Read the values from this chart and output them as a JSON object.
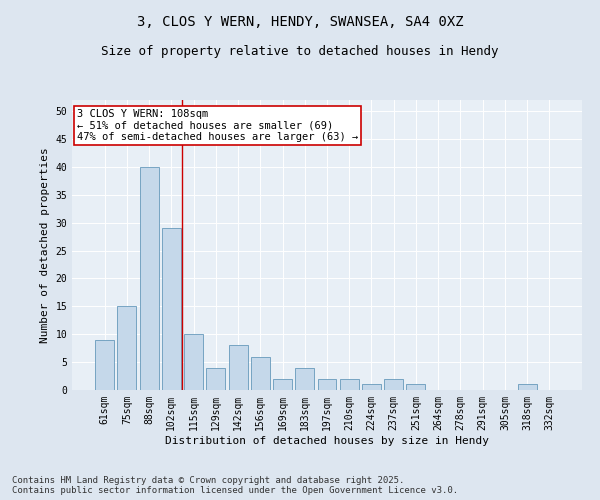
{
  "title": "3, CLOS Y WERN, HENDY, SWANSEA, SA4 0XZ",
  "subtitle": "Size of property relative to detached houses in Hendy",
  "xlabel": "Distribution of detached houses by size in Hendy",
  "ylabel": "Number of detached properties",
  "categories": [
    "61sqm",
    "75sqm",
    "88sqm",
    "102sqm",
    "115sqm",
    "129sqm",
    "142sqm",
    "156sqm",
    "169sqm",
    "183sqm",
    "197sqm",
    "210sqm",
    "224sqm",
    "237sqm",
    "251sqm",
    "264sqm",
    "278sqm",
    "291sqm",
    "305sqm",
    "318sqm",
    "332sqm"
  ],
  "values": [
    9,
    15,
    40,
    29,
    10,
    4,
    8,
    6,
    2,
    4,
    2,
    2,
    1,
    2,
    1,
    0,
    0,
    0,
    0,
    1,
    0
  ],
  "bar_color": "#c5d8ea",
  "bar_edge_color": "#6699bb",
  "vline_x": 3.5,
  "vline_color": "#cc0000",
  "annotation_text": "3 CLOS Y WERN: 108sqm\n← 51% of detached houses are smaller (69)\n47% of semi-detached houses are larger (63) →",
  "annotation_box_facecolor": "#ffffff",
  "annotation_box_edgecolor": "#cc0000",
  "ylim": [
    0,
    52
  ],
  "yticks": [
    0,
    5,
    10,
    15,
    20,
    25,
    30,
    35,
    40,
    45,
    50
  ],
  "footnote": "Contains HM Land Registry data © Crown copyright and database right 2025.\nContains public sector information licensed under the Open Government Licence v3.0.",
  "bg_color": "#dde6f0",
  "plot_bg_color": "#e8eff6",
  "title_fontsize": 10,
  "subtitle_fontsize": 9,
  "axis_label_fontsize": 8,
  "tick_fontsize": 7,
  "footnote_fontsize": 6.5,
  "annotation_fontsize": 7.5
}
